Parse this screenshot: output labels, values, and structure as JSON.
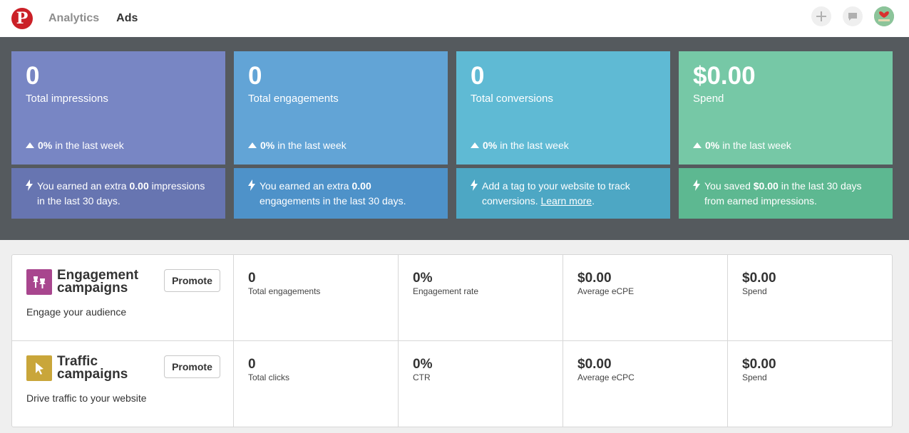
{
  "header": {
    "logo": "P",
    "tabs": [
      {
        "label": "Analytics",
        "active": false
      },
      {
        "label": "Ads",
        "active": true
      }
    ],
    "icons": [
      "plus-icon",
      "message-icon",
      "avatar"
    ]
  },
  "stats": [
    {
      "value": "0",
      "label": "Total impressions",
      "change_pct": "0%",
      "change_text": "in the last week",
      "note_pre": "You earned an extra ",
      "note_bold": "0.00",
      "note_post": " impressions in the last 30 days.",
      "color": "#7886c4"
    },
    {
      "value": "0",
      "label": "Total engagements",
      "change_pct": "0%",
      "change_text": "in the last week",
      "note_pre": "You earned an extra ",
      "note_bold": "0.00",
      "note_post": " engagements in the last 30 days.",
      "color": "#62a4d6"
    },
    {
      "value": "0",
      "label": "Total conversions",
      "change_pct": "0%",
      "change_text": "in the last week",
      "note_pre": "Add a tag to your website to track conversions. ",
      "note_link": "Learn more",
      "note_post": ".",
      "color": "#5fbad4"
    },
    {
      "value": "$0.00",
      "label": "Spend",
      "change_pct": "0%",
      "change_text": "in the last week",
      "note_pre": "You saved ",
      "note_bold": "$0.00",
      "note_post": " in the last 30 days from earned impressions.",
      "color": "#76c8a6"
    }
  ],
  "campaigns": [
    {
      "title": "Engagement campaigns",
      "description": "Engage your audience",
      "button": "Promote",
      "icon": "pushpin-icon",
      "icon_color": "#a8468e",
      "metrics": [
        {
          "value": "0",
          "label": "Total engagements"
        },
        {
          "value": "0%",
          "label": "Engagement rate"
        },
        {
          "value": "$0.00",
          "label": "Average eCPE"
        },
        {
          "value": "$0.00",
          "label": "Spend"
        }
      ]
    },
    {
      "title": "Traffic campaigns",
      "description": "Drive traffic to your website",
      "button": "Promote",
      "icon": "cursor-icon",
      "icon_color": "#c9a63a",
      "metrics": [
        {
          "value": "0",
          "label": "Total clicks"
        },
        {
          "value": "0%",
          "label": "CTR"
        },
        {
          "value": "$0.00",
          "label": "Average eCPC"
        },
        {
          "value": "$0.00",
          "label": "Spend"
        }
      ]
    }
  ]
}
